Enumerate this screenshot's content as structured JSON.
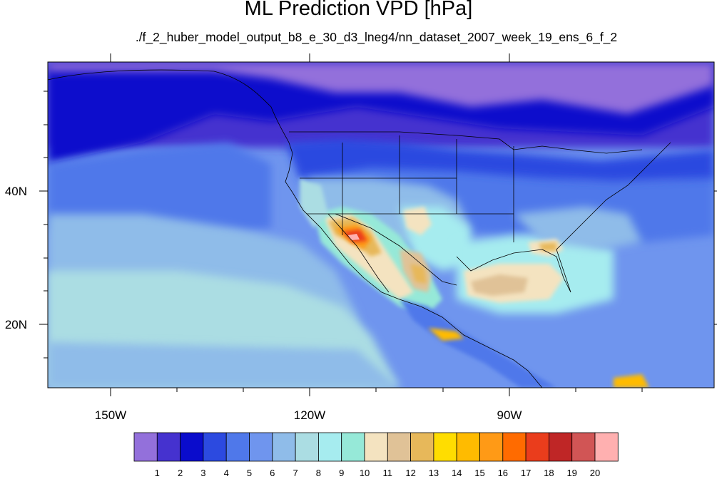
{
  "title": "ML Prediction VPD [hPa]",
  "subtitle": "./f_2_huber_model_output_b8_e_30_d3_lneg4/nn_dataset_2007_week_19_ens_6_f_2",
  "map": {
    "lon_labels": [
      "150W",
      "120W",
      "90W"
    ],
    "lat_labels": [
      "40N",
      "20N"
    ]
  },
  "colorbar": {
    "colors": [
      "#9370db",
      "#4532cf",
      "#0a0ccc",
      "#2c4ae0",
      "#4f78ea",
      "#6f95ee",
      "#8fbce9",
      "#abdde3",
      "#a6ecef",
      "#96e9d8",
      "#f4e3c0",
      "#e0c297",
      "#e7b85a",
      "#ffdd00",
      "#ffbb00",
      "#ff9a16",
      "#ff6b00",
      "#ea3d1c",
      "#bf2626",
      "#d15555",
      "#ffb0b0"
    ],
    "labels": [
      "1",
      "2",
      "3",
      "4",
      "5",
      "6",
      "7",
      "8",
      "9",
      "10",
      "11",
      "12",
      "13",
      "14",
      "15",
      "16",
      "17",
      "18",
      "19",
      "20"
    ]
  }
}
